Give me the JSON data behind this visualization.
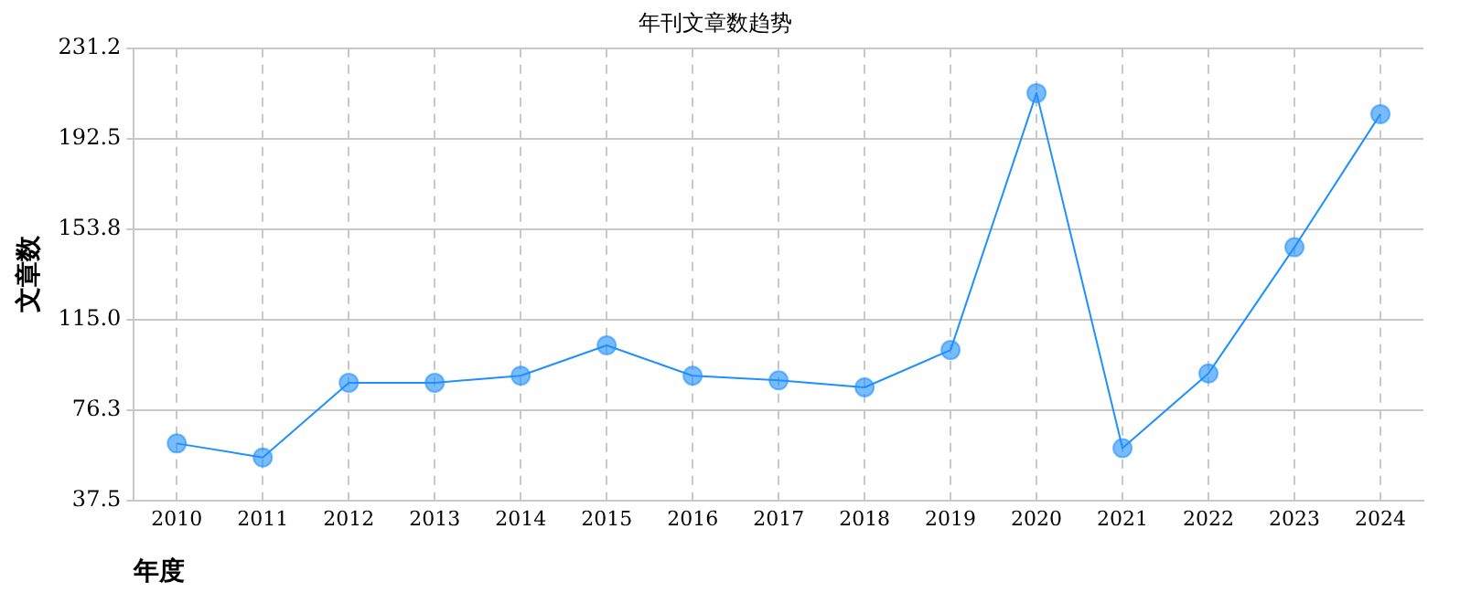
{
  "chart_data": {
    "type": "line",
    "title": "年刊文章数趋势",
    "xlabel": "年度",
    "ylabel": "文章数",
    "categories": [
      "2010",
      "2011",
      "2012",
      "2013",
      "2014",
      "2015",
      "2016",
      "2017",
      "2018",
      "2019",
      "2020",
      "2021",
      "2022",
      "2023",
      "2024"
    ],
    "series": [
      {
        "color": "#1e90ff",
        "values": [
          62,
          56,
          88,
          88,
          91,
          104,
          91,
          89,
          86,
          102,
          212,
          60,
          92,
          146,
          203
        ]
      }
    ],
    "ylim": [
      37.5,
      231.2
    ],
    "yticks": [
      37.5,
      {
        "value": 76.3,
        "label": "76.3"
      },
      {
        "value": 115,
        "label": "115.0"
      },
      153.8,
      192.5,
      231.2
    ],
    "grid": true,
    "legend": false,
    "marker": "circle",
    "line_style": "solid"
  }
}
